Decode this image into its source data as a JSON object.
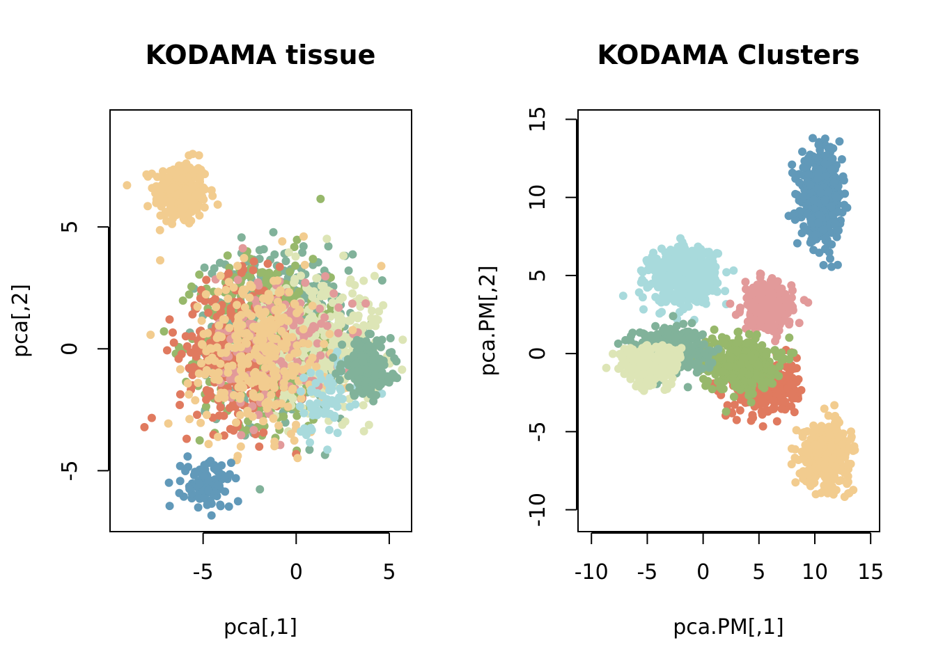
{
  "chart_data": [
    {
      "type": "scatter",
      "title": "KODAMA tissue",
      "xlabel": "pca[,1]",
      "ylabel": "pca[,2]",
      "xlim": [
        -10,
        6.2
      ],
      "ylim": [
        -7.5,
        9.8
      ],
      "xticks": [
        -5,
        0,
        5
      ],
      "yticks": [
        -5,
        0,
        5
      ],
      "xtick_labels": [
        "-5",
        "0",
        "5"
      ],
      "ytick_labels": [
        "-5",
        "0",
        "5"
      ],
      "colors": [
        "#F2CC8F",
        "#97B86B",
        "#81B29A",
        "#E07A5F",
        "#DDE5B6",
        "#E29A9A",
        "#6199B9",
        "#A8DADC"
      ],
      "clusters": [
        {
          "color": "#F2CC8F",
          "center": [
            -6.2,
            6.4
          ],
          "spread": [
            1.3,
            1.2
          ],
          "n": 260
        },
        {
          "color": "#81B29A",
          "center": [
            -1.0,
            0.6
          ],
          "spread": [
            3.4,
            3.0
          ],
          "n": 520
        },
        {
          "color": "#97B86B",
          "center": [
            -1.6,
            0.3
          ],
          "spread": [
            3.2,
            3.1
          ],
          "n": 480
        },
        {
          "color": "#E07A5F",
          "center": [
            -3.2,
            -0.2
          ],
          "spread": [
            2.8,
            2.6
          ],
          "n": 320
        },
        {
          "color": "#DDE5B6",
          "center": [
            1.5,
            0.4
          ],
          "spread": [
            3.0,
            2.6
          ],
          "n": 300
        },
        {
          "color": "#E29A9A",
          "center": [
            -1.0,
            0.2
          ],
          "spread": [
            3.0,
            2.6
          ],
          "n": 180
        },
        {
          "color": "#F2CC8F",
          "center": [
            -2.0,
            -0.2
          ],
          "spread": [
            3.3,
            3.0
          ],
          "n": 300
        },
        {
          "color": "#6199B9",
          "center": [
            -4.8,
            -5.6
          ],
          "spread": [
            1.2,
            0.9
          ],
          "n": 110
        },
        {
          "color": "#A8DADC",
          "center": [
            1.6,
            -2.0
          ],
          "spread": [
            1.8,
            1.6
          ],
          "n": 70
        },
        {
          "color": "#81B29A",
          "center": [
            3.8,
            -0.8
          ],
          "spread": [
            1.2,
            1.0
          ],
          "n": 220
        }
      ]
    },
    {
      "type": "scatter",
      "title": "KODAMA Clusters",
      "xlabel": "pca.PM[,1]",
      "ylabel": "pca.PM[,2]",
      "xlim": [
        -11.2,
        15.8
      ],
      "ylim": [
        -11.4,
        15.6
      ],
      "xticks": [
        -10,
        -5,
        0,
        5,
        10,
        15
      ],
      "yticks": [
        -10,
        -5,
        0,
        5,
        10,
        15
      ],
      "xtick_labels": [
        "-10",
        "-5",
        "0",
        "5",
        "10",
        "15"
      ],
      "ytick_labels": [
        "-10",
        "-5",
        "0",
        "5",
        "10",
        "15"
      ],
      "colors": [
        "#F2CC8F",
        "#97B86B",
        "#81B29A",
        "#E07A5F",
        "#DDE5B6",
        "#E29A9A",
        "#6199B9",
        "#A8DADC"
      ],
      "clusters": [
        {
          "color": "#6199B9",
          "center": [
            10.6,
            10.0
          ],
          "spread": [
            1.6,
            2.3
          ],
          "n": 560
        },
        {
          "color": "#A8DADC",
          "center": [
            -1.8,
            5.0
          ],
          "spread": [
            2.7,
            1.6
          ],
          "n": 520
        },
        {
          "color": "#E29A9A",
          "center": [
            5.8,
            3.0
          ],
          "spread": [
            2.0,
            1.4
          ],
          "n": 260
        },
        {
          "color": "#F2CC8F",
          "center": [
            11.0,
            -6.4
          ],
          "spread": [
            1.9,
            1.7
          ],
          "n": 520
        },
        {
          "color": "#E07A5F",
          "center": [
            5.5,
            -2.2
          ],
          "spread": [
            2.6,
            1.6
          ],
          "n": 300
        },
        {
          "color": "#97B86B",
          "center": [
            3.2,
            -0.6
          ],
          "spread": [
            3.0,
            1.6
          ],
          "n": 340
        },
        {
          "color": "#81B29A",
          "center": [
            -3.0,
            0.3
          ],
          "spread": [
            3.0,
            1.3
          ],
          "n": 320
        },
        {
          "color": "#DDE5B6",
          "center": [
            -4.8,
            -0.8
          ],
          "spread": [
            2.4,
            1.2
          ],
          "n": 260
        }
      ]
    }
  ]
}
